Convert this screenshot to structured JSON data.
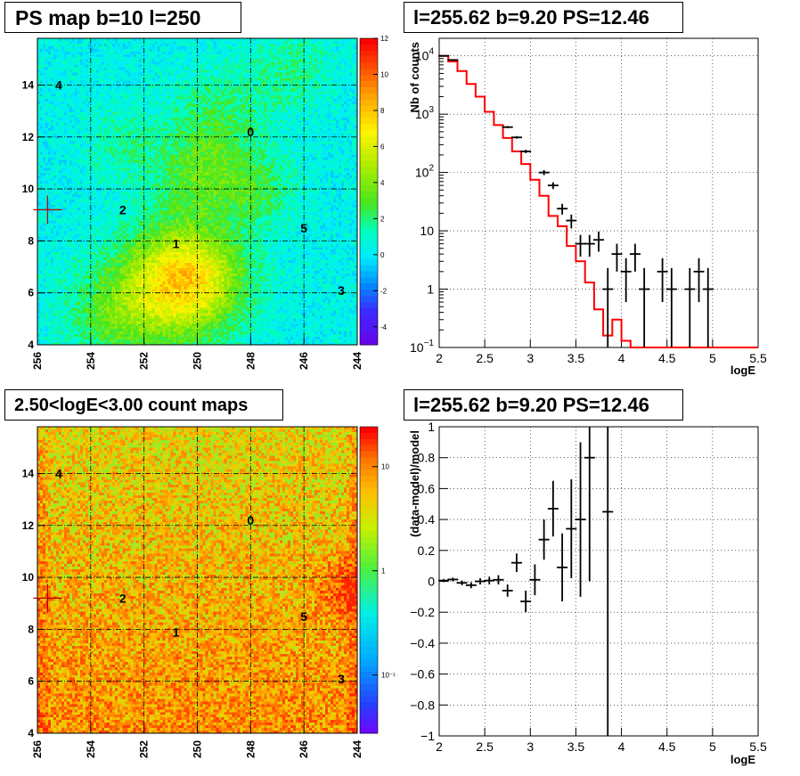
{
  "panels": {
    "ps_map": {
      "title": "PS map b=10 l=250"
    },
    "count_map": {
      "title": "2.50<logE<3.00 count maps"
    },
    "spectrum": {
      "title": "l=255.62 b=9.20 PS=12.46"
    },
    "residual": {
      "title": "l=255.62 b=9.20 PS=12.46"
    }
  },
  "chart_data": [
    {
      "type": "heatmap",
      "title": "PS map b=10 l=250",
      "x_ticks": [
        "256",
        "254",
        "252",
        "250",
        "248",
        "246",
        "244"
      ],
      "y_ticks": [
        "4",
        "6",
        "8",
        "10",
        "12",
        "14"
      ],
      "xlim": [
        256,
        244
      ],
      "ylim": [
        4,
        15.8
      ],
      "colorbar_ticks": [
        "12",
        "10",
        "8",
        "6",
        "4",
        "2",
        "0",
        "-2",
        "-4"
      ],
      "colorbar_range": [
        -5,
        12
      ],
      "sources": [
        {
          "label": "0",
          "l": 248.0,
          "b": 12.2
        },
        {
          "label": "1",
          "l": 250.8,
          "b": 7.9
        },
        {
          "label": "2",
          "l": 252.8,
          "b": 9.2
        },
        {
          "label": "3",
          "l": 244.6,
          "b": 6.1
        },
        {
          "label": "4",
          "l": 255.2,
          "b": 14.0
        },
        {
          "label": "5",
          "l": 246.0,
          "b": 8.5
        }
      ],
      "marker": {
        "l": 255.62,
        "b": 9.2
      },
      "grid": true
    },
    {
      "type": "heatmap",
      "title": "2.50<logE<3.00 count maps",
      "x_ticks": [
        "256",
        "254",
        "252",
        "250",
        "248",
        "246",
        "244"
      ],
      "y_ticks": [
        "4",
        "6",
        "8",
        "10",
        "12",
        "14"
      ],
      "xlim": [
        256,
        244
      ],
      "ylim": [
        4,
        15.8
      ],
      "colorbar_ticks": [
        "10",
        "1",
        "10⁻¹"
      ],
      "colorbar_scale": "log",
      "sources": [
        {
          "label": "0",
          "l": 248.0,
          "b": 12.2
        },
        {
          "label": "1",
          "l": 250.8,
          "b": 7.9
        },
        {
          "label": "2",
          "l": 252.8,
          "b": 9.2
        },
        {
          "label": "3",
          "l": 244.6,
          "b": 6.1
        },
        {
          "label": "4",
          "l": 255.2,
          "b": 14.0
        },
        {
          "label": "5",
          "l": 246.0,
          "b": 8.5
        }
      ],
      "marker": {
        "l": 255.62,
        "b": 9.2
      },
      "grid": true
    },
    {
      "type": "line",
      "title": "l=255.62 b=9.20 PS=12.46",
      "xlabel": "logE",
      "ylabel": "Nb of counts",
      "xlim": [
        2,
        5.5
      ],
      "ylim": [
        0.1,
        20000
      ],
      "yscale": "log",
      "x_ticks": [
        "2",
        "2.5",
        "3",
        "3.5",
        "4",
        "4.5",
        "5",
        "5.5"
      ],
      "y_ticks": [
        {
          "value": 0.1,
          "label": "10",
          "exp": "−1"
        },
        {
          "value": 1,
          "label": "1",
          "exp": ""
        },
        {
          "value": 10,
          "label": "10",
          "exp": ""
        },
        {
          "value": 100,
          "label": "10",
          "exp": "2"
        },
        {
          "value": 1000,
          "label": "10",
          "exp": "3"
        },
        {
          "value": 10000,
          "label": "10",
          "exp": "4"
        }
      ],
      "model_edges": [
        2.0,
        2.1,
        2.2,
        2.3,
        2.4,
        2.5,
        2.6,
        2.7,
        2.8,
        2.9,
        3.0,
        3.1,
        3.2,
        3.3,
        3.4,
        3.5,
        3.6,
        3.7,
        3.8,
        3.9,
        4.0,
        4.1,
        4.2,
        5.5
      ],
      "model_values": [
        10000,
        8000,
        5500,
        3300,
        2000,
        1100,
        650,
        390,
        230,
        140,
        75,
        40,
        18,
        12,
        5.5,
        3,
        1.3,
        0.45,
        0.16,
        0.3,
        0.13,
        0.1,
        0.1
      ],
      "series": [
        {
          "name": "data",
          "points": [
            {
              "x": 2.05,
              "y": 10000,
              "lo": 9900,
              "hi": 10100
            },
            {
              "x": 2.15,
              "y": 8500,
              "lo": 8400,
              "hi": 8600
            },
            {
              "x": 2.75,
              "y": 600,
              "lo": 575,
              "hi": 625
            },
            {
              "x": 2.85,
              "y": 400,
              "lo": 380,
              "hi": 420
            },
            {
              "x": 2.95,
              "y": 230,
              "lo": 215,
              "hi": 245
            },
            {
              "x": 3.15,
              "y": 100,
              "lo": 90,
              "hi": 110
            },
            {
              "x": 3.25,
              "y": 60,
              "lo": 52,
              "hi": 68
            },
            {
              "x": 3.35,
              "y": 24,
              "lo": 19,
              "hi": 29
            },
            {
              "x": 3.45,
              "y": 15,
              "lo": 11,
              "hi": 19
            },
            {
              "x": 3.55,
              "y": 6,
              "lo": 3.6,
              "hi": 8.5
            },
            {
              "x": 3.65,
              "y": 6,
              "lo": 3.6,
              "hi": 8.5
            },
            {
              "x": 3.75,
              "y": 7,
              "lo": 4.4,
              "hi": 9.7
            },
            {
              "x": 3.85,
              "y": 1,
              "lo": 0.1,
              "hi": 2.3
            },
            {
              "x": 3.95,
              "y": 4,
              "lo": 2,
              "hi": 6
            },
            {
              "x": 4.05,
              "y": 2,
              "lo": 0.6,
              "hi": 3.4
            },
            {
              "x": 4.15,
              "y": 4,
              "lo": 2,
              "hi": 6
            },
            {
              "x": 4.25,
              "y": 1,
              "lo": 0.1,
              "hi": 2.3
            },
            {
              "x": 4.45,
              "y": 2,
              "lo": 0.6,
              "hi": 3.4
            },
            {
              "x": 4.55,
              "y": 1,
              "lo": 0.1,
              "hi": 2.3
            },
            {
              "x": 4.75,
              "y": 1,
              "lo": 0.1,
              "hi": 2.3
            },
            {
              "x": 4.85,
              "y": 2,
              "lo": 0.6,
              "hi": 3.4
            },
            {
              "x": 4.95,
              "y": 1,
              "lo": 0.1,
              "hi": 2.3
            }
          ]
        }
      ],
      "grid": true
    },
    {
      "type": "scatter",
      "title": "l=255.62 b=9.20 PS=12.46",
      "xlabel": "logE",
      "ylabel": "(data-model)/model",
      "xlim": [
        2,
        5.5
      ],
      "ylim": [
        -1,
        1
      ],
      "x_ticks": [
        "2",
        "2.5",
        "3",
        "3.5",
        "4",
        "4.5",
        "5",
        "5.5"
      ],
      "y_ticks": [
        "1",
        "0.8",
        "0.6",
        "0.4",
        "0.2",
        "0",
        "−0.2",
        "−0.4",
        "−0.6",
        "−0.8",
        "−1"
      ],
      "series": [
        {
          "name": "residual",
          "points": [
            {
              "x": 2.05,
              "y": 0.005,
              "err": 0.01
            },
            {
              "x": 2.15,
              "y": 0.012,
              "err": 0.012
            },
            {
              "x": 2.25,
              "y": -0.01,
              "err": 0.015
            },
            {
              "x": 2.35,
              "y": -0.025,
              "err": 0.02
            },
            {
              "x": 2.45,
              "y": 0.0,
              "err": 0.02
            },
            {
              "x": 2.55,
              "y": 0.005,
              "err": 0.025
            },
            {
              "x": 2.65,
              "y": 0.01,
              "err": 0.03
            },
            {
              "x": 2.75,
              "y": -0.06,
              "err": 0.04
            },
            {
              "x": 2.85,
              "y": 0.12,
              "err": 0.06
            },
            {
              "x": 2.95,
              "y": -0.13,
              "err": 0.07
            },
            {
              "x": 3.05,
              "y": 0.01,
              "err": 0.1
            },
            {
              "x": 3.15,
              "y": 0.27,
              "err": 0.13
            },
            {
              "x": 3.25,
              "y": 0.47,
              "err": 0.18
            },
            {
              "x": 3.35,
              "y": 0.09,
              "err": 0.22
            },
            {
              "x": 3.45,
              "y": 0.34,
              "err": 0.32
            },
            {
              "x": 3.55,
              "y": 0.4,
              "err": 0.5
            },
            {
              "x": 3.65,
              "y": 0.8,
              "err": 0.8
            },
            {
              "x": 3.85,
              "y": 0.45,
              "err": 1.5
            }
          ]
        }
      ],
      "grid": true
    }
  ]
}
